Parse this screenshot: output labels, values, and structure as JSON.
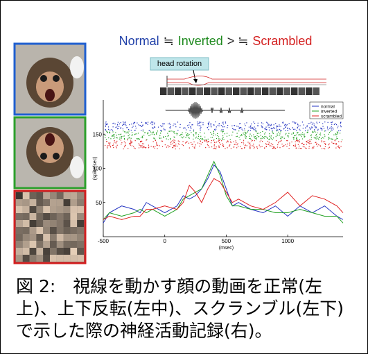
{
  "header": {
    "title": [
      {
        "text": "Normal",
        "color": "#1f3fa8"
      },
      {
        "text": "≒",
        "color": "#222222"
      },
      {
        "text": "Inverted",
        "color": "#1f8a1f"
      },
      {
        "text": "> ≒",
        "color": "#222222"
      },
      {
        "text": "Scrambled",
        "color": "#d42020"
      }
    ]
  },
  "callout": "head rotation",
  "chart_data": {
    "type": "line",
    "x": [
      -500,
      -450,
      -350,
      -250,
      -200,
      -150,
      -100,
      0,
      100,
      150,
      200,
      250,
      300,
      350,
      400,
      450,
      500,
      550,
      600,
      700,
      800,
      900,
      1000,
      1100,
      1200,
      1300,
      1400,
      1450
    ],
    "series": [
      {
        "name": "normal",
        "color": "#2030c0",
        "values": [
          20,
          35,
          45,
          40,
          35,
          50,
          45,
          35,
          45,
          60,
          55,
          60,
          70,
          85,
          105,
          95,
          70,
          45,
          50,
          40,
          35,
          45,
          30,
          45,
          35,
          45,
          30,
          25
        ]
      },
      {
        "name": "inverted",
        "color": "#20a020",
        "values": [
          25,
          35,
          30,
          35,
          40,
          35,
          40,
          30,
          40,
          55,
          60,
          65,
          70,
          90,
          110,
          90,
          60,
          45,
          45,
          40,
          40,
          35,
          35,
          40,
          35,
          30,
          30,
          20
        ]
      },
      {
        "name": "scrambled",
        "color": "#e02020",
        "values": [
          25,
          30,
          25,
          30,
          30,
          40,
          40,
          45,
          40,
          50,
          75,
          65,
          50,
          70,
          85,
          80,
          65,
          50,
          55,
          45,
          40,
          50,
          65,
          45,
          60,
          55,
          45,
          35
        ]
      }
    ],
    "xlim": [
      -500,
      1450
    ],
    "ylim": [
      0,
      200
    ],
    "xticks": [
      -500,
      0,
      500,
      1000
    ],
    "yticks": [
      50,
      100,
      150
    ],
    "xlabel": "(msec)",
    "ylabel": "(spike/sec)"
  },
  "caption": "図 2:　視線を動かす顔の動画を正常(左上)、上下反転(左中)、スクランブル(左下)で示した際の神経活動記録(右)。"
}
